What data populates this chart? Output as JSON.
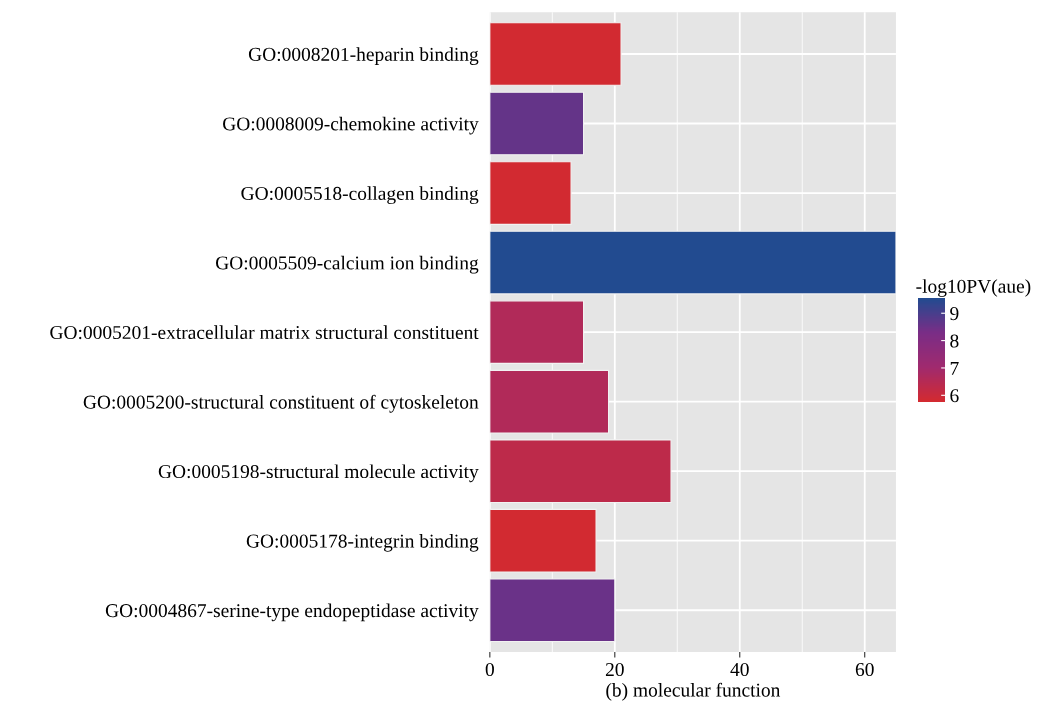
{
  "chart_data": {
    "type": "bar",
    "orientation": "horizontal",
    "xlabel": "(b) molecular function",
    "clabel": "-log10PV(aue)",
    "categories": [
      "GO:0008201-heparin binding",
      "GO:0008009-chemokine activity",
      "GO:0005518-collagen binding",
      "GO:0005509-calcium ion binding",
      "GO:0005201-extracellular matrix structural constituent",
      "GO:0005200-structural constituent of cytoskeleton",
      "GO:0005198-structural molecule activity",
      "GO:0005178-integrin binding",
      "GO:0004867-serine-type endopeptidase activity"
    ],
    "values": [
      21,
      15,
      13,
      65,
      15,
      19,
      29,
      17,
      20
    ],
    "cvalues": [
      5.8,
      8.6,
      5.8,
      9.55,
      6.6,
      6.6,
      6.3,
      5.8,
      8.5
    ],
    "clim": [
      5.75,
      9.55
    ],
    "cticks": [
      6,
      7,
      8,
      9
    ],
    "xlim": [
      0,
      65
    ],
    "xticks": [
      0,
      20,
      40,
      60
    ],
    "grid": true
  }
}
